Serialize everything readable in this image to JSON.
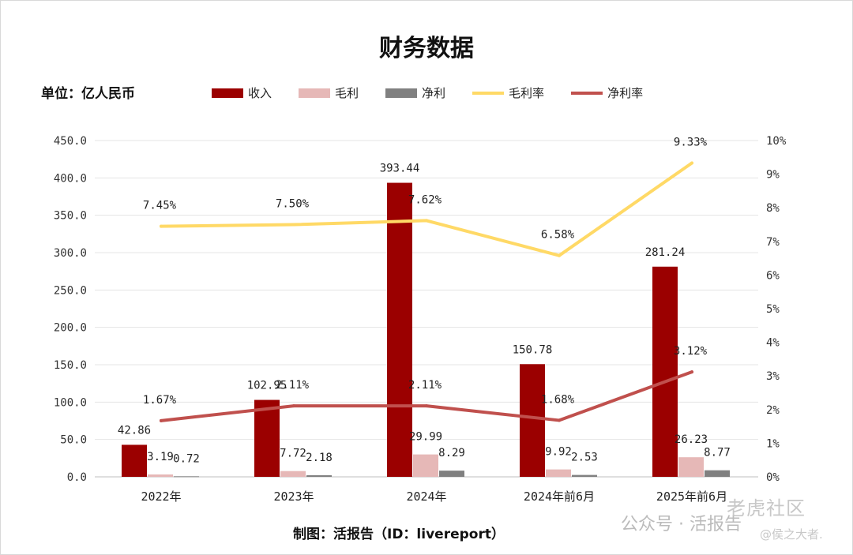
{
  "chart_data": {
    "type": "bar",
    "title": "财务数据",
    "unit_label": "单位：亿人民币",
    "categories": [
      "2022年",
      "2023年",
      "2024年",
      "2024年前6月",
      "2025年前6月"
    ],
    "series": [
      {
        "name": "收入",
        "kind": "bar",
        "color": "#9b0000",
        "values": [
          42.86,
          102.95,
          393.44,
          150.78,
          281.24
        ],
        "labels": [
          "42.86",
          "102.95",
          "393.44",
          "150.78",
          "281.24"
        ]
      },
      {
        "name": "毛利",
        "kind": "bar",
        "color": "#e6b8b7",
        "values": [
          3.19,
          7.72,
          29.99,
          9.92,
          26.23
        ],
        "labels": [
          "3.19",
          "7.72",
          "29.99",
          "9.92",
          "26.23"
        ]
      },
      {
        "name": "净利",
        "kind": "bar",
        "color": "#808080",
        "values": [
          0.72,
          2.18,
          8.29,
          2.53,
          8.77
        ],
        "labels": [
          "0.72",
          "2.18",
          "8.29",
          "2.53",
          "8.77"
        ]
      },
      {
        "name": "毛利率",
        "kind": "line",
        "axis": "right",
        "color": "#ffd966",
        "values": [
          7.45,
          7.5,
          7.62,
          6.58,
          9.33
        ],
        "labels": [
          "7.45%",
          "7.50%",
          "7.62%",
          "6.58%",
          "9.33%"
        ]
      },
      {
        "name": "净利率",
        "kind": "line",
        "axis": "right",
        "color": "#c0504d",
        "values": [
          1.67,
          2.11,
          2.11,
          1.68,
          3.12
        ],
        "labels": [
          "1.67%",
          "2.11%",
          "2.11%",
          "1.68%",
          "3.12%"
        ]
      }
    ],
    "ylim": [
      0,
      450
    ],
    "yticks": [
      "0.0",
      "50.0",
      "100.0",
      "150.0",
      "200.0",
      "250.0",
      "300.0",
      "350.0",
      "400.0",
      "450.0"
    ],
    "y2lim": [
      0,
      10
    ],
    "y2ticks": [
      "0%",
      "1%",
      "2%",
      "3%",
      "4%",
      "5%",
      "6%",
      "7%",
      "8%",
      "9%",
      "10%"
    ],
    "grid": true,
    "legend": "top"
  },
  "footer": "制图：活报告（ID：livereport）",
  "watermark": {
    "account": "公众号 · 活报告",
    "community": "老虎社区",
    "user": "@侯之大者."
  }
}
